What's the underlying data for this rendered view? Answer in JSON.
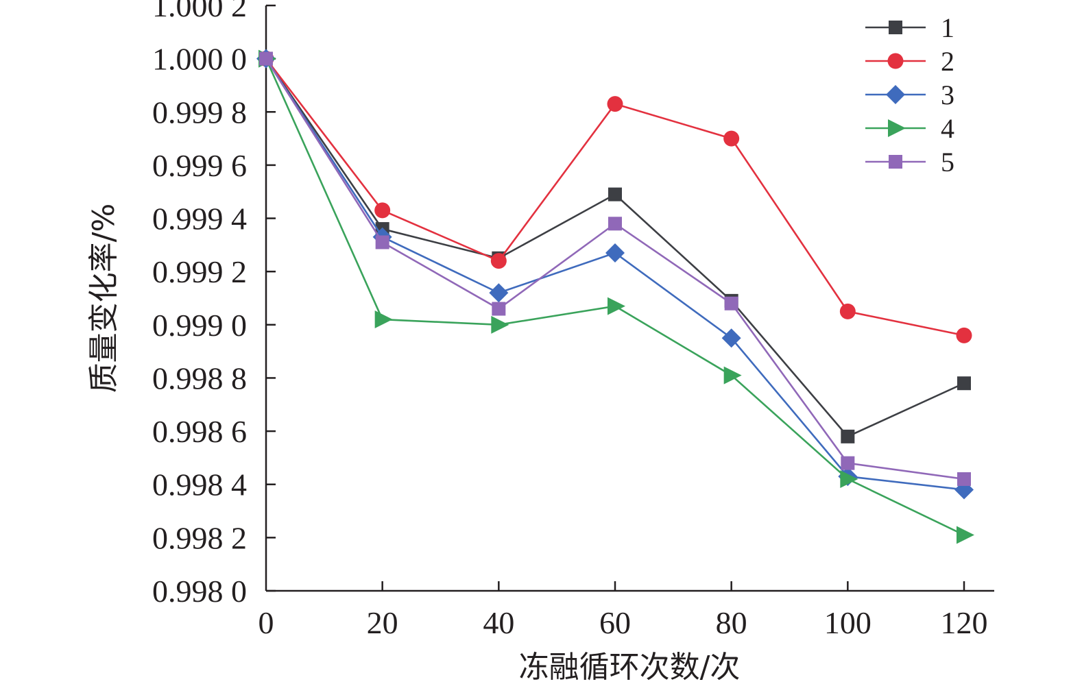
{
  "chart_data": {
    "type": "line",
    "title": "",
    "xlabel": "冻融循环次数/次",
    "ylabel": "质量变化率/%",
    "x": [
      0,
      20,
      40,
      60,
      80,
      100,
      120
    ],
    "xlim": [
      0,
      120
    ],
    "ylim": [
      0.998,
      1.0002
    ],
    "x_ticks": [
      "0",
      "20",
      "40",
      "60",
      "80",
      "100",
      "120"
    ],
    "y_ticks": [
      {
        "value": 1.0002,
        "label": "1.000 2"
      },
      {
        "value": 1.0,
        "label": "1.000 0"
      },
      {
        "value": 0.9998,
        "label": "0.999 8"
      },
      {
        "value": 0.9996,
        "label": "0.999 6"
      },
      {
        "value": 0.9994,
        "label": "0.999 4"
      },
      {
        "value": 0.9992,
        "label": "0.999 2"
      },
      {
        "value": 0.999,
        "label": "0.999 0"
      },
      {
        "value": 0.9988,
        "label": "0.998 8"
      },
      {
        "value": 0.9986,
        "label": "0.998 6"
      },
      {
        "value": 0.9984,
        "label": "0.998 4"
      },
      {
        "value": 0.9982,
        "label": "0.998 2"
      },
      {
        "value": 0.998,
        "label": "0.998 0"
      }
    ],
    "grid": false,
    "legend_position": "top-right",
    "series": [
      {
        "name": "1",
        "color": "#3d3f44",
        "marker": "square",
        "values": [
          1.0,
          0.99936,
          0.99925,
          0.99949,
          0.99909,
          0.99858,
          0.99878
        ]
      },
      {
        "name": "2",
        "color": "#e3313f",
        "marker": "circle",
        "values": [
          1.0,
          0.99943,
          0.99924,
          0.99983,
          0.9997,
          0.99905,
          0.99896
        ]
      },
      {
        "name": "3",
        "color": "#3f6bbd",
        "marker": "diamond",
        "values": [
          1.0,
          0.99933,
          0.99912,
          0.99927,
          0.99895,
          0.99843,
          0.99838
        ]
      },
      {
        "name": "4",
        "color": "#3aa35b",
        "marker": "triangle",
        "values": [
          1.0,
          0.99902,
          0.999,
          0.99907,
          0.99881,
          0.99842,
          0.99821
        ]
      },
      {
        "name": "5",
        "color": "#9068b8",
        "marker": "square",
        "values": [
          1.0,
          0.99931,
          0.99906,
          0.99938,
          0.99908,
          0.99848,
          0.99842
        ]
      }
    ]
  }
}
